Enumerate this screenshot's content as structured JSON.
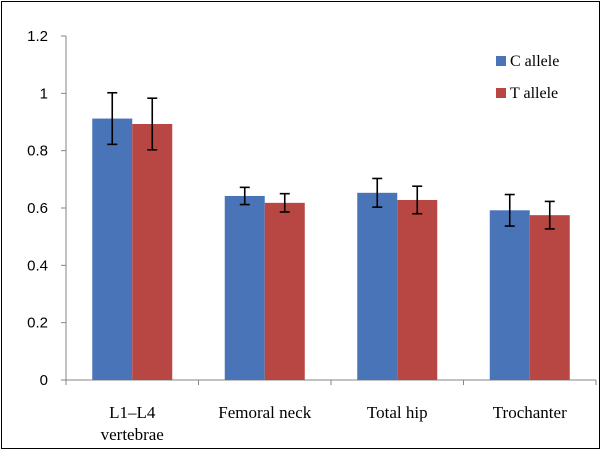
{
  "chart_data": {
    "type": "bar",
    "categories": [
      [
        "L1–L4",
        "vertebrae"
      ],
      [
        "Femoral neck"
      ],
      [
        "Total hip"
      ],
      [
        "Trochanter"
      ]
    ],
    "series": [
      {
        "name": "C allele",
        "color": "#4a74b8",
        "values": [
          0.912,
          0.642,
          0.653,
          0.592
        ],
        "errors": [
          0.09,
          0.03,
          0.05,
          0.055
        ]
      },
      {
        "name": "T allele",
        "color": "#b84643",
        "values": [
          0.893,
          0.618,
          0.628,
          0.575
        ],
        "errors": [
          0.09,
          0.032,
          0.048,
          0.048
        ]
      }
    ],
    "ylim": [
      0,
      1.2
    ],
    "yticks": [
      0,
      0.2,
      0.4,
      0.6,
      0.8,
      1,
      1.2
    ],
    "ytick_labels": [
      "0",
      "0.2",
      "0.4",
      "0.6",
      "0.8",
      "1",
      "1.2"
    ],
    "grid": false,
    "legend": "top-right",
    "title": "",
    "xlabel": "",
    "ylabel": ""
  }
}
